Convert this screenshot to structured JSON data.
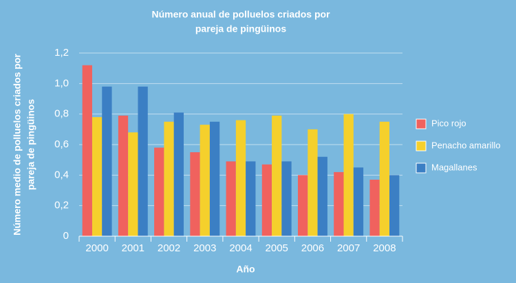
{
  "chart_data": {
    "type": "bar",
    "title": [
      "Número anual de polluelos criados por",
      "pareja de pingüinos"
    ],
    "x_label": "Año",
    "y_label": [
      "Número medio de polluelos criados por",
      "pareja de pingüinos"
    ],
    "categories": [
      "2000",
      "2001",
      "2002",
      "2003",
      "2004",
      "2005",
      "2006",
      "2007",
      "2008"
    ],
    "series": [
      {
        "name": "Pico rojo",
        "color": "#f0625e",
        "values": [
          1.12,
          0.79,
          0.58,
          0.55,
          0.49,
          0.47,
          0.4,
          0.42,
          0.37
        ]
      },
      {
        "name": "Penacho amarillo",
        "color": "#f5d02c",
        "values": [
          0.78,
          0.68,
          0.75,
          0.73,
          0.76,
          0.79,
          0.7,
          0.8,
          0.75
        ]
      },
      {
        "name": "Magallanes",
        "color": "#3b7fc4",
        "values": [
          0.98,
          0.98,
          0.81,
          0.75,
          0.49,
          0.49,
          0.52,
          0.45,
          0.4
        ]
      }
    ],
    "ylim": [
      0,
      1.2
    ],
    "yticks": [
      0,
      {
        "value": 0.2,
        "label": "0,2"
      },
      {
        "value": 0.4,
        "label": "0,4"
      },
      {
        "value": 0.6,
        "label": "0,6"
      },
      {
        "value": 0.8,
        "label": "0,8"
      },
      {
        "value": 1.0,
        "label": "1,0"
      },
      {
        "value": 1.2,
        "label": "1,2"
      }
    ],
    "grid": true,
    "legend": "right"
  }
}
